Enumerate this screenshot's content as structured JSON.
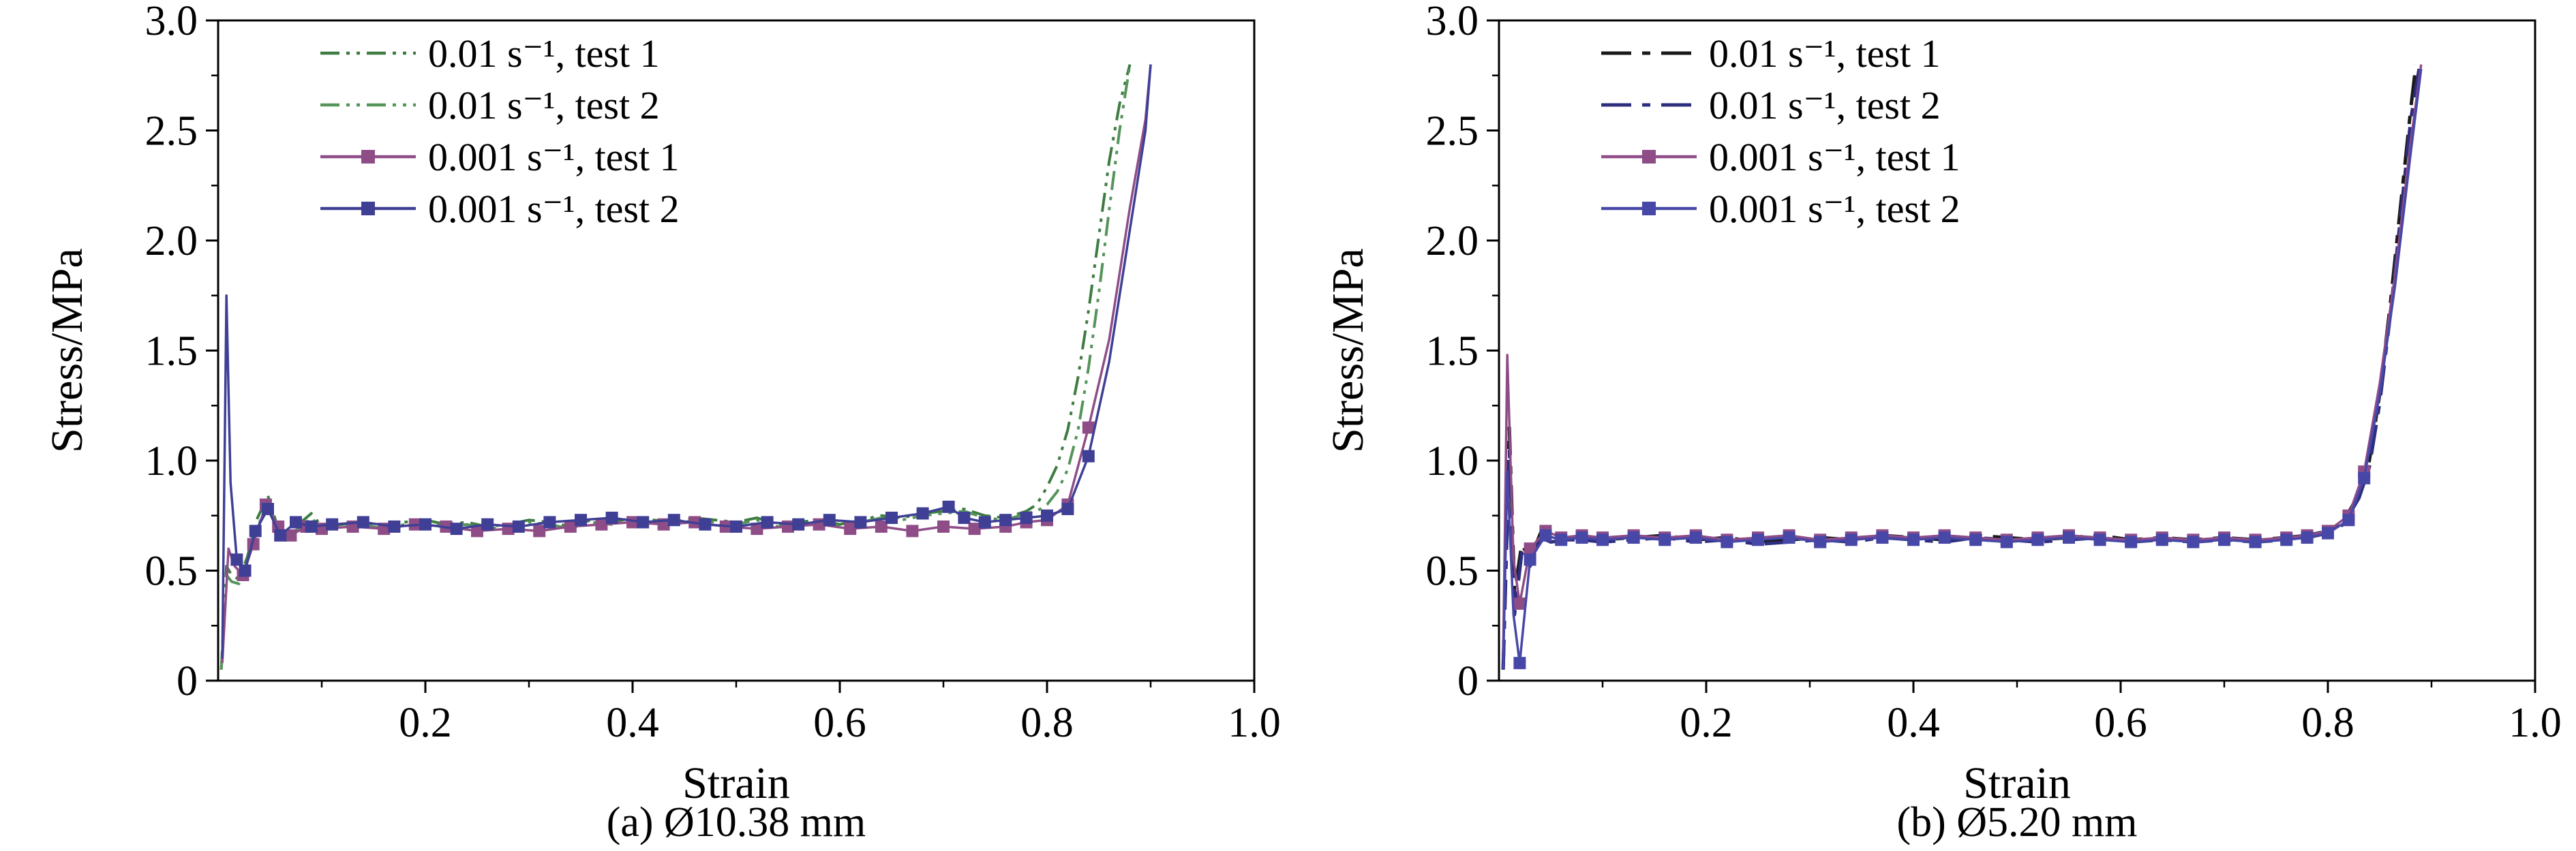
{
  "page": {
    "background": "#ffffff"
  },
  "chart_data": [
    {
      "type": "line",
      "caption": "(a) Ø10.38 mm",
      "xlabel": "Strain",
      "ylabel": "Stress/MPa",
      "xlim": [
        0,
        1.0
      ],
      "ylim": [
        0,
        3.0
      ],
      "xtick_values": [
        0.2,
        0.4,
        0.6,
        0.8,
        1.0
      ],
      "xtick_labels": [
        "0.2",
        "0.4",
        "0.6",
        "0.8",
        "1.0"
      ],
      "xtick_minor": [
        0.1,
        0.3,
        0.5,
        0.7,
        0.9
      ],
      "ytick_values": [
        0,
        0.5,
        1.0,
        1.5,
        2.0,
        2.5,
        3.0
      ],
      "ytick_labels": [
        "0",
        "0.5",
        "1.0",
        "1.5",
        "2.0",
        "2.5",
        "3.0"
      ],
      "ytick_minor": [
        0.25,
        0.75,
        1.25,
        1.75,
        2.25,
        2.75
      ],
      "legend_position": "top-left",
      "grid": false,
      "series": [
        {
          "name": "0.01 s⁻¹, test 1",
          "color": "#3e7c42",
          "dash": "dash-dot-dot",
          "marker": "none",
          "line_width": 4,
          "x": [
            0.003,
            0.008,
            0.013,
            0.02,
            0.028,
            0.038,
            0.048,
            0.058,
            0.068,
            0.08,
            0.09,
            0.1,
            0.12,
            0.14,
            0.16,
            0.18,
            0.2,
            0.22,
            0.24,
            0.26,
            0.28,
            0.3,
            0.32,
            0.34,
            0.36,
            0.38,
            0.4,
            0.42,
            0.44,
            0.46,
            0.48,
            0.5,
            0.52,
            0.54,
            0.56,
            0.58,
            0.6,
            0.62,
            0.64,
            0.66,
            0.68,
            0.7,
            0.72,
            0.74,
            0.76,
            0.78,
            0.79,
            0.8,
            0.81,
            0.82,
            0.83,
            0.84,
            0.85,
            0.86,
            0.87,
            0.88
          ],
          "y": [
            0.05,
            0.52,
            0.48,
            0.46,
            0.56,
            0.74,
            0.84,
            0.69,
            0.64,
            0.72,
            0.76,
            0.7,
            0.71,
            0.72,
            0.7,
            0.72,
            0.73,
            0.71,
            0.72,
            0.7,
            0.71,
            0.73,
            0.72,
            0.7,
            0.73,
            0.72,
            0.74,
            0.73,
            0.72,
            0.74,
            0.73,
            0.72,
            0.74,
            0.71,
            0.72,
            0.73,
            0.71,
            0.73,
            0.75,
            0.74,
            0.76,
            0.77,
            0.78,
            0.75,
            0.74,
            0.77,
            0.8,
            0.88,
            0.98,
            1.14,
            1.38,
            1.68,
            2.02,
            2.36,
            2.62,
            2.8
          ]
        },
        {
          "name": "0.01 s⁻¹, test 2",
          "color": "#55945a",
          "dash": "dash-dot-dot",
          "marker": "none",
          "line_width": 4,
          "x": [
            0.003,
            0.008,
            0.013,
            0.02,
            0.028,
            0.038,
            0.048,
            0.058,
            0.068,
            0.08,
            0.09,
            0.1,
            0.12,
            0.14,
            0.16,
            0.18,
            0.2,
            0.22,
            0.24,
            0.26,
            0.28,
            0.3,
            0.32,
            0.34,
            0.36,
            0.38,
            0.4,
            0.42,
            0.44,
            0.46,
            0.48,
            0.5,
            0.52,
            0.54,
            0.56,
            0.58,
            0.6,
            0.62,
            0.64,
            0.66,
            0.68,
            0.7,
            0.72,
            0.74,
            0.76,
            0.78,
            0.79,
            0.8,
            0.81,
            0.82,
            0.83,
            0.84,
            0.85,
            0.86,
            0.87,
            0.88
          ],
          "y": [
            0.05,
            0.48,
            0.45,
            0.44,
            0.54,
            0.7,
            0.8,
            0.67,
            0.66,
            0.7,
            0.74,
            0.69,
            0.7,
            0.71,
            0.69,
            0.71,
            0.72,
            0.7,
            0.71,
            0.69,
            0.7,
            0.72,
            0.71,
            0.69,
            0.72,
            0.71,
            0.73,
            0.72,
            0.71,
            0.73,
            0.72,
            0.71,
            0.73,
            0.7,
            0.71,
            0.72,
            0.7,
            0.72,
            0.74,
            0.73,
            0.75,
            0.76,
            0.77,
            0.74,
            0.73,
            0.76,
            0.77,
            0.8,
            0.86,
            0.96,
            1.14,
            1.42,
            1.76,
            2.14,
            2.5,
            2.8
          ]
        },
        {
          "name": "0.001 s⁻¹, test 1",
          "color": "#8f4d88",
          "dash": "solid",
          "marker": "square",
          "marker_every": 1,
          "marker_max_y": 1.2,
          "line_width": 3.5,
          "x": [
            0.004,
            0.01,
            0.016,
            0.024,
            0.034,
            0.046,
            0.058,
            0.07,
            0.085,
            0.1,
            0.13,
            0.16,
            0.19,
            0.22,
            0.25,
            0.28,
            0.31,
            0.34,
            0.37,
            0.4,
            0.43,
            0.46,
            0.49,
            0.52,
            0.55,
            0.58,
            0.61,
            0.64,
            0.67,
            0.7,
            0.73,
            0.76,
            0.78,
            0.8,
            0.82,
            0.84,
            0.86,
            0.88,
            0.895,
            0.9
          ],
          "y": [
            0.08,
            0.6,
            0.52,
            0.48,
            0.62,
            0.8,
            0.7,
            0.66,
            0.7,
            0.69,
            0.7,
            0.69,
            0.71,
            0.7,
            0.68,
            0.69,
            0.68,
            0.7,
            0.71,
            0.72,
            0.71,
            0.72,
            0.7,
            0.69,
            0.7,
            0.71,
            0.69,
            0.7,
            0.68,
            0.7,
            0.69,
            0.7,
            0.72,
            0.73,
            0.8,
            1.15,
            1.55,
            2.15,
            2.55,
            2.8
          ]
        },
        {
          "name": "0.001 s⁻¹, test 2",
          "color": "#3f3f96",
          "dash": "solid",
          "marker": "square",
          "marker_every": 1,
          "marker_max_y": 1.1,
          "line_width": 3.5,
          "x": [
            0.004,
            0.008,
            0.012,
            0.018,
            0.026,
            0.036,
            0.048,
            0.06,
            0.075,
            0.09,
            0.11,
            0.14,
            0.17,
            0.2,
            0.23,
            0.26,
            0.29,
            0.32,
            0.35,
            0.38,
            0.41,
            0.44,
            0.47,
            0.5,
            0.53,
            0.56,
            0.59,
            0.62,
            0.65,
            0.68,
            0.705,
            0.72,
            0.74,
            0.76,
            0.78,
            0.8,
            0.82,
            0.84,
            0.86,
            0.88,
            0.895,
            0.9
          ],
          "y": [
            0.1,
            1.75,
            0.9,
            0.55,
            0.5,
            0.68,
            0.78,
            0.66,
            0.72,
            0.7,
            0.71,
            0.72,
            0.7,
            0.71,
            0.69,
            0.71,
            0.7,
            0.72,
            0.73,
            0.74,
            0.72,
            0.73,
            0.71,
            0.7,
            0.72,
            0.71,
            0.73,
            0.72,
            0.74,
            0.76,
            0.79,
            0.74,
            0.72,
            0.73,
            0.74,
            0.75,
            0.78,
            1.02,
            1.45,
            2.05,
            2.5,
            2.8
          ]
        }
      ]
    },
    {
      "type": "line",
      "caption": "(b) Ø5.20 mm",
      "xlabel": "Strain",
      "ylabel": "Stress/MPa",
      "xlim": [
        0,
        1.0
      ],
      "ylim": [
        0,
        3.0
      ],
      "xtick_values": [
        0.2,
        0.4,
        0.6,
        0.8,
        1.0
      ],
      "xtick_labels": [
        "0.2",
        "0.4",
        "0.6",
        "0.8",
        "1.0"
      ],
      "xtick_minor": [
        0.1,
        0.3,
        0.5,
        0.7,
        0.9
      ],
      "ytick_values": [
        0,
        0.5,
        1.0,
        1.5,
        2.0,
        2.5,
        3.0
      ],
      "ytick_labels": [
        "0",
        "0.5",
        "1.0",
        "1.5",
        "2.0",
        "2.5",
        "3.0"
      ],
      "ytick_minor": [
        0.25,
        0.75,
        1.25,
        1.75,
        2.25,
        2.75
      ],
      "legend_position": "top-left",
      "grid": false,
      "series": [
        {
          "name": "0.01 s⁻¹, test 1",
          "color": "#1a1a1a",
          "dash": "dash-dot",
          "marker": "none",
          "line_width": 5,
          "x": [
            0.004,
            0.01,
            0.015,
            0.022,
            0.03,
            0.04,
            0.05,
            0.065,
            0.08,
            0.1,
            0.13,
            0.16,
            0.19,
            0.22,
            0.25,
            0.28,
            0.31,
            0.34,
            0.37,
            0.4,
            0.43,
            0.46,
            0.49,
            0.52,
            0.55,
            0.58,
            0.61,
            0.64,
            0.67,
            0.7,
            0.73,
            0.76,
            0.78,
            0.8,
            0.815,
            0.83,
            0.84,
            0.85,
            0.86,
            0.87,
            0.88,
            0.885
          ],
          "y": [
            0.05,
            1.15,
            0.4,
            0.62,
            0.55,
            0.67,
            0.64,
            0.66,
            0.65,
            0.64,
            0.65,
            0.66,
            0.64,
            0.65,
            0.63,
            0.64,
            0.65,
            0.64,
            0.66,
            0.65,
            0.64,
            0.66,
            0.65,
            0.64,
            0.65,
            0.66,
            0.64,
            0.65,
            0.64,
            0.65,
            0.64,
            0.65,
            0.66,
            0.68,
            0.72,
            0.85,
            1.0,
            1.3,
            1.7,
            2.15,
            2.6,
            2.8
          ]
        },
        {
          "name": "0.01 s⁻¹, test 2",
          "color": "#2e2e7e",
          "dash": "dash-dot",
          "marker": "none",
          "line_width": 5,
          "x": [
            0.004,
            0.01,
            0.015,
            0.022,
            0.03,
            0.04,
            0.05,
            0.065,
            0.08,
            0.1,
            0.13,
            0.16,
            0.19,
            0.22,
            0.25,
            0.28,
            0.31,
            0.34,
            0.37,
            0.4,
            0.43,
            0.46,
            0.49,
            0.52,
            0.55,
            0.58,
            0.61,
            0.64,
            0.67,
            0.7,
            0.73,
            0.76,
            0.78,
            0.8,
            0.815,
            0.83,
            0.84,
            0.85,
            0.86,
            0.87,
            0.88,
            0.888
          ],
          "y": [
            0.05,
            1.05,
            0.3,
            0.58,
            0.52,
            0.65,
            0.63,
            0.64,
            0.64,
            0.63,
            0.64,
            0.65,
            0.63,
            0.64,
            0.62,
            0.63,
            0.64,
            0.63,
            0.65,
            0.64,
            0.63,
            0.65,
            0.64,
            0.63,
            0.64,
            0.65,
            0.63,
            0.64,
            0.63,
            0.64,
            0.63,
            0.64,
            0.65,
            0.67,
            0.71,
            0.83,
            0.97,
            1.26,
            1.65,
            2.1,
            2.55,
            2.78
          ]
        },
        {
          "name": "0.001 s⁻¹, test 1",
          "color": "#8f4d88",
          "dash": "solid",
          "marker": "square",
          "marker_every": 1,
          "marker_max_y": 1.0,
          "line_width": 3.5,
          "x": [
            0.004,
            0.008,
            0.014,
            0.02,
            0.03,
            0.045,
            0.06,
            0.08,
            0.1,
            0.13,
            0.16,
            0.19,
            0.22,
            0.25,
            0.28,
            0.31,
            0.34,
            0.37,
            0.4,
            0.43,
            0.46,
            0.49,
            0.52,
            0.55,
            0.58,
            0.61,
            0.64,
            0.67,
            0.7,
            0.73,
            0.76,
            0.78,
            0.8,
            0.82,
            0.835,
            0.85,
            0.865,
            0.88,
            0.89
          ],
          "y": [
            0.1,
            1.48,
            0.55,
            0.35,
            0.6,
            0.68,
            0.65,
            0.66,
            0.65,
            0.66,
            0.65,
            0.66,
            0.64,
            0.65,
            0.66,
            0.64,
            0.65,
            0.66,
            0.65,
            0.66,
            0.65,
            0.64,
            0.65,
            0.66,
            0.65,
            0.64,
            0.65,
            0.64,
            0.65,
            0.64,
            0.65,
            0.66,
            0.68,
            0.75,
            0.95,
            1.35,
            1.85,
            2.45,
            2.8
          ]
        },
        {
          "name": "0.001 s⁻¹, test 2",
          "color": "#4747a8",
          "dash": "solid",
          "marker": "square",
          "marker_every": 1,
          "marker_max_y": 0.95,
          "line_width": 3.5,
          "x": [
            0.004,
            0.008,
            0.014,
            0.02,
            0.03,
            0.045,
            0.06,
            0.08,
            0.1,
            0.13,
            0.16,
            0.19,
            0.22,
            0.25,
            0.28,
            0.31,
            0.34,
            0.37,
            0.4,
            0.43,
            0.46,
            0.49,
            0.52,
            0.55,
            0.58,
            0.61,
            0.64,
            0.67,
            0.7,
            0.73,
            0.76,
            0.78,
            0.8,
            0.82,
            0.835,
            0.85,
            0.865,
            0.88,
            0.89
          ],
          "y": [
            0.05,
            0.95,
            0.3,
            0.08,
            0.55,
            0.66,
            0.64,
            0.65,
            0.64,
            0.65,
            0.64,
            0.65,
            0.63,
            0.64,
            0.65,
            0.63,
            0.64,
            0.65,
            0.64,
            0.65,
            0.64,
            0.63,
            0.64,
            0.65,
            0.64,
            0.63,
            0.64,
            0.63,
            0.64,
            0.63,
            0.64,
            0.65,
            0.67,
            0.73,
            0.92,
            1.3,
            1.8,
            2.4,
            2.78
          ]
        }
      ]
    }
  ]
}
